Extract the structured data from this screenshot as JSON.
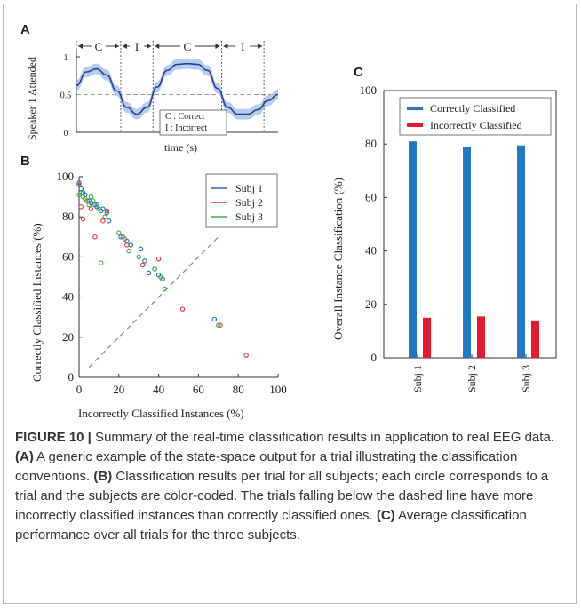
{
  "panel_a": {
    "letter": "A",
    "ylabel": "Speaker 1 Attended",
    "xlabel": "time (s)",
    "yticks": [
      "1",
      "0.5",
      "0"
    ],
    "segments": [
      "C",
      "I",
      "C",
      "I"
    ],
    "legend": [
      "C : Correct",
      "I : Incorrect"
    ]
  },
  "panel_b": {
    "letter": "B",
    "xlabel": "Incorrectly Classified Instances (%)",
    "ylabel": "Correctly Classified Instances (%)",
    "xticks": [
      "0",
      "20",
      "40",
      "60",
      "80",
      "100"
    ],
    "yticks": [
      "0",
      "20",
      "40",
      "60",
      "80",
      "100"
    ],
    "legend": [
      "Subj 1",
      "Subj 2",
      "Subj 3"
    ]
  },
  "panel_c": {
    "letter": "C",
    "ylabel": "Overall Instance Classification (%)",
    "yticks": [
      "0",
      "20",
      "40",
      "60",
      "80",
      "100"
    ],
    "legend": [
      "Correctly Classified",
      "Incorrectly Classified"
    ]
  },
  "caption": {
    "fig_label": "FIGURE 10 |",
    "intro": " Summary of the real-time classification results in application to real EEG data. ",
    "a_label": "(A)",
    "a_text": " A generic example of the state-space output for a trial illustrating the classification conventions. ",
    "b_label": "(B)",
    "b_text": " Classification results per trial for all subjects; each circle corresponds to a trial and the subjects are color-coded. The trials falling below the dashed line have more incorrectly classified instances than correctly classified ones. ",
    "c_label": "(C)",
    "c_text": " Average classification performance over all trials for the three subjects."
  },
  "colors": {
    "subj1": "#1f6fc0",
    "subj2": "#e53935",
    "subj3": "#3cb043",
    "correct": "#1f78c8",
    "incorrect": "#e8192c",
    "curve": "#2c3e9e",
    "band": "#a8c4ea"
  },
  "chart_data": [
    {
      "type": "line",
      "panel": "A",
      "xlabel": "time (s)",
      "ylabel": "Speaker 1 Attended",
      "ylim": [
        0,
        1
      ],
      "x": [
        0,
        0.05,
        0.1,
        0.15,
        0.2,
        0.25,
        0.3,
        0.35,
        0.4,
        0.45,
        0.5,
        0.55,
        0.6,
        0.65,
        0.7,
        0.75,
        0.8,
        0.85,
        0.9,
        0.95,
        1.0
      ],
      "values": [
        0.62,
        0.8,
        0.84,
        0.76,
        0.55,
        0.33,
        0.24,
        0.33,
        0.6,
        0.82,
        0.9,
        0.91,
        0.9,
        0.82,
        0.58,
        0.33,
        0.24,
        0.24,
        0.3,
        0.42,
        0.5
      ],
      "band_halfwidth": 0.07,
      "reference_line": 0.5,
      "segments": [
        {
          "label": "C",
          "x_start": 0.0,
          "x_end": 0.22
        },
        {
          "label": "I",
          "x_start": 0.22,
          "x_end": 0.38
        },
        {
          "label": "C",
          "x_start": 0.38,
          "x_end": 0.72
        },
        {
          "label": "I",
          "x_start": 0.72,
          "x_end": 0.93
        }
      ]
    },
    {
      "type": "scatter",
      "panel": "B",
      "xlabel": "Incorrectly Classified Instances (%)",
      "ylabel": "Correctly Classified Instances (%)",
      "xlim": [
        0,
        100
      ],
      "ylim": [
        0,
        100
      ],
      "reference_line": {
        "from": [
          5,
          5
        ],
        "to": [
          70,
          70
        ],
        "style": "dashed"
      },
      "legend_position": "top-right",
      "series": [
        {
          "name": "Subj 1",
          "points": [
            [
              0,
              97
            ],
            [
              1,
              94
            ],
            [
              2,
              92
            ],
            [
              3,
              91
            ],
            [
              5,
              88
            ],
            [
              6,
              87
            ],
            [
              8,
              86
            ],
            [
              9,
              85
            ],
            [
              10,
              84
            ],
            [
              11,
              83
            ],
            [
              12,
              84
            ],
            [
              13,
              80
            ],
            [
              14,
              82
            ],
            [
              15,
              78
            ],
            [
              21,
              70
            ],
            [
              24,
              68
            ],
            [
              26,
              66
            ],
            [
              31,
              64
            ],
            [
              33,
              58
            ],
            [
              35,
              52
            ],
            [
              38,
              54
            ],
            [
              40,
              51
            ],
            [
              42,
              49
            ],
            [
              68,
              29
            ]
          ]
        },
        {
          "name": "Subj 2",
          "points": [
            [
              0,
              96
            ],
            [
              1,
              85
            ],
            [
              2,
              79
            ],
            [
              4,
              88
            ],
            [
              6,
              84
            ],
            [
              8,
              70
            ],
            [
              12,
              78
            ],
            [
              14,
              83
            ],
            [
              22,
              70
            ],
            [
              24,
              66
            ],
            [
              32,
              56
            ],
            [
              40,
              59
            ],
            [
              52,
              34
            ],
            [
              71,
              26
            ],
            [
              84,
              11
            ]
          ]
        },
        {
          "name": "Subj 3",
          "points": [
            [
              0,
              91
            ],
            [
              1,
              92
            ],
            [
              2,
              90
            ],
            [
              3,
              89
            ],
            [
              5,
              86
            ],
            [
              6,
              90
            ],
            [
              7,
              88
            ],
            [
              9,
              86
            ],
            [
              10,
              84
            ],
            [
              11,
              57
            ],
            [
              13,
              80
            ],
            [
              20,
              72
            ],
            [
              23,
              69
            ],
            [
              25,
              63
            ],
            [
              30,
              60
            ],
            [
              38,
              54
            ],
            [
              41,
              50
            ],
            [
              43,
              44
            ],
            [
              70,
              26
            ]
          ]
        }
      ]
    },
    {
      "type": "bar",
      "panel": "C",
      "ylabel": "Overall Instance Classification (%)",
      "ylim": [
        0,
        100
      ],
      "categories": [
        "Subj 1",
        "Subj 2",
        "Subj 3"
      ],
      "legend_position": "top",
      "series": [
        {
          "name": "Correctly Classified",
          "values": [
            81,
            79,
            79.5
          ]
        },
        {
          "name": "Incorrectly Classified",
          "values": [
            15,
            15.5,
            14
          ]
        }
      ]
    }
  ]
}
